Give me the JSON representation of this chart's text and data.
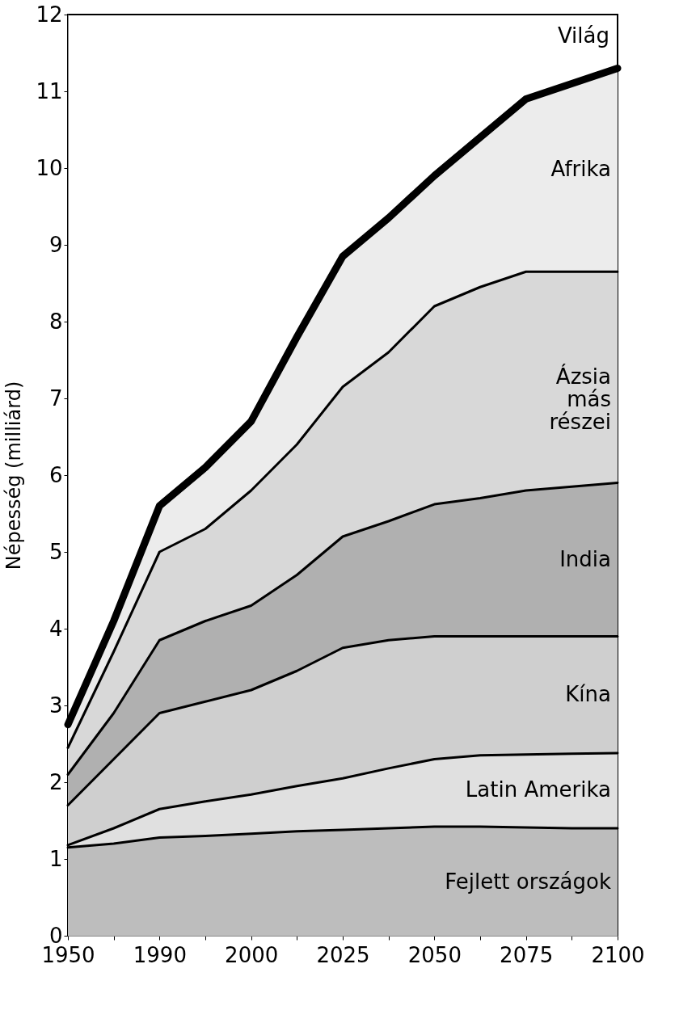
{
  "chart_data": {
    "type": "area",
    "stacked": true,
    "ylabel": "Népesség (milliárd)",
    "categories": [
      "1950",
      null,
      "1990",
      null,
      "2000",
      null,
      "2025",
      null,
      "2050",
      null,
      "2075",
      null,
      "2100"
    ],
    "ylim": [
      0,
      12
    ],
    "yticks": [
      0,
      1,
      2,
      3,
      4,
      5,
      6,
      7,
      8,
      9,
      10,
      11,
      12
    ],
    "grid": false,
    "legend": false,
    "annotations": [
      "Világ"
    ],
    "series": [
      {
        "name": "Fejlett országok",
        "color": "#bdbdbd",
        "values": [
          1.15,
          1.2,
          1.28,
          1.3,
          1.33,
          1.36,
          1.38,
          1.4,
          1.42,
          1.42,
          1.41,
          1.4,
          1.4
        ]
      },
      {
        "name": "Latin Amerika",
        "color": "#e0e0e0",
        "values": [
          0.03,
          0.2,
          0.37,
          0.45,
          0.51,
          0.59,
          0.67,
          0.78,
          0.88,
          0.93,
          0.95,
          0.97,
          0.98
        ]
      },
      {
        "name": "Kína",
        "color": "#cfcfcf",
        "values": [
          0.52,
          0.9,
          1.25,
          1.3,
          1.36,
          1.5,
          1.7,
          1.67,
          1.6,
          1.55,
          1.54,
          1.53,
          1.52
        ]
      },
      {
        "name": "India",
        "color": "#b0b0b0",
        "values": [
          0.4,
          0.6,
          0.95,
          1.05,
          1.1,
          1.25,
          1.45,
          1.55,
          1.72,
          1.8,
          1.9,
          1.95,
          2.0
        ]
      },
      {
        "name": "Ázsia más részei",
        "color": "#d8d8d8",
        "values": [
          0.35,
          0.8,
          1.15,
          1.2,
          1.5,
          1.7,
          1.95,
          2.2,
          2.58,
          2.75,
          2.85,
          2.8,
          2.75
        ]
      },
      {
        "name": "Afrika",
        "color": "#ececec",
        "values": [
          0.3,
          0.4,
          0.6,
          0.8,
          0.9,
          1.4,
          1.7,
          1.75,
          1.7,
          1.95,
          2.25,
          2.45,
          2.65
        ]
      }
    ]
  }
}
